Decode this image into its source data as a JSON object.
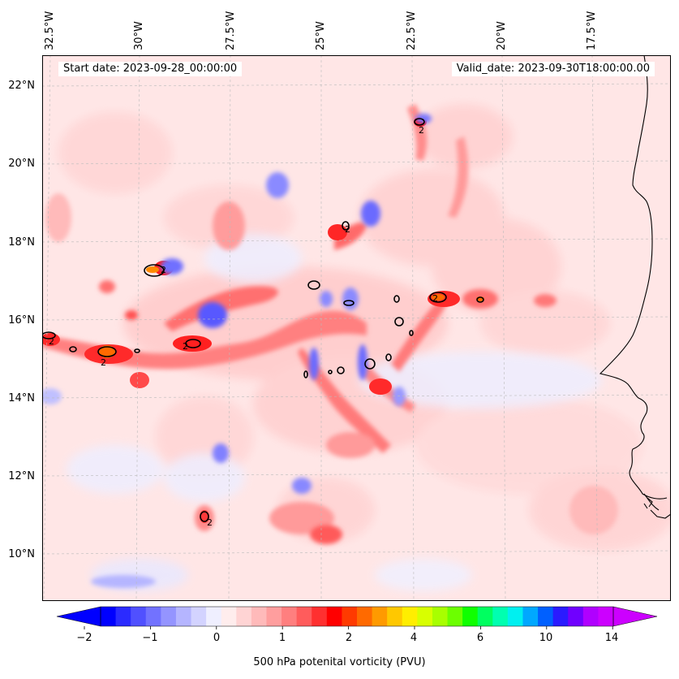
{
  "header": {
    "start_date": "Start date: 2023-09-28_00:00:00",
    "valid_date": "Valid_date: 2023-09-30T18:00:00.00"
  },
  "lon_labels": [
    "32.5°W",
    "30°W",
    "27.5°W",
    "25°W",
    "22.5°W",
    "20°W",
    "17.5°W"
  ],
  "lat_labels": [
    "22°N",
    "20°N",
    "18°N",
    "16°N",
    "14°N",
    "12°N",
    "10°N"
  ],
  "contour_level_label": "2",
  "colorbar": {
    "title": "500 hPa potenital vorticity (PVU)",
    "tick_labels": [
      "−2",
      "−1",
      "0",
      "1",
      "2",
      "4",
      "6",
      "10",
      "14"
    ],
    "colors": [
      "#0000ff",
      "#2b2bff",
      "#5050ff",
      "#7272ff",
      "#9494ff",
      "#b5b5ff",
      "#d3d3ff",
      "#efefff",
      "#ffeded",
      "#ffd4d4",
      "#ffbaba",
      "#ff9e9e",
      "#ff7f7f",
      "#ff5c5c",
      "#ff3030",
      "#ff0000",
      "#ff3a00",
      "#ff6a00",
      "#ff9a00",
      "#ffc800",
      "#ffee00",
      "#d8ff00",
      "#a8ff00",
      "#6cff00",
      "#10ff00",
      "#00ff60",
      "#00ffb0",
      "#00f0f0",
      "#00a8ff",
      "#0060ff",
      "#2a1bff",
      "#7000ff",
      "#b000ff",
      "#cc00ff"
    ]
  },
  "map": {
    "background": "#ffe6e6",
    "coast_color": "#000000"
  }
}
